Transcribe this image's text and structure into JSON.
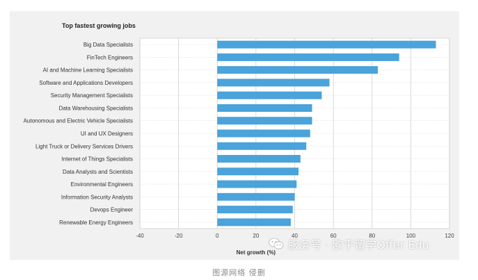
{
  "chart_data": {
    "type": "bar",
    "orientation": "horizontal",
    "title": "Top fastest growing jobs",
    "xlabel": "Net growth (%)",
    "ylabel": "",
    "xlim": [
      -40,
      120
    ],
    "xticks": [
      -40,
      -20,
      0,
      20,
      40,
      60,
      80,
      100,
      120
    ],
    "grid": true,
    "bar_color": "#4aa3da",
    "categories": [
      "Big Data Specialists",
      "FinTech Engineers",
      "AI and Machine Learning Specialists",
      "Software and Applications Developers",
      "Security Management Specialists",
      "Data Warehousing Specialists",
      "Autonomous and Electric Vehicle Specialists",
      "UI and UX Designers",
      "Light Truck or Delivery Services Drivers",
      "Internet of Things Specialists",
      "Data Analysts and Scientists",
      "Environmental Engineers",
      "Information Security Analysts",
      "Devops Engineer",
      "Renewable Energy Engineers"
    ],
    "values": [
      113,
      94,
      83,
      58,
      54,
      49,
      49,
      48,
      46,
      43,
      42,
      41,
      40,
      39,
      38
    ]
  },
  "watermark": {
    "text": "服务号 · 欧乎留学Offer Edu",
    "icon": "wechat-icon"
  },
  "caption": "图源网络 侵删"
}
